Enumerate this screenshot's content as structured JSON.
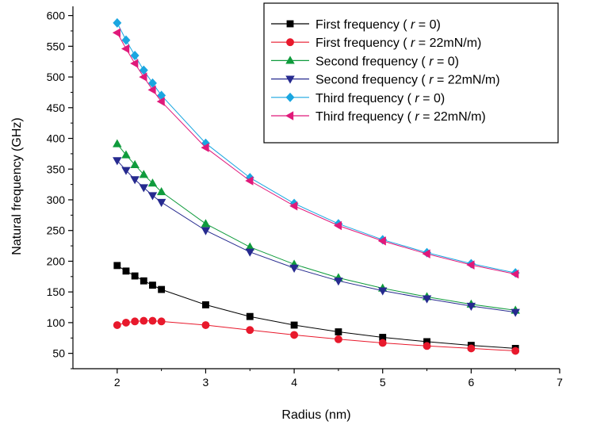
{
  "chart_data": {
    "type": "line",
    "xlabel": "Radius (nm)",
    "ylabel": "Natural frequency (GHz)",
    "xlim": [
      1.5,
      7
    ],
    "ylim": [
      25,
      615
    ],
    "xticks": [
      2,
      3,
      4,
      5,
      6,
      7
    ],
    "yticks": [
      50,
      100,
      150,
      200,
      250,
      300,
      350,
      400,
      450,
      500,
      550,
      600
    ],
    "grid": false,
    "legend_position": "top-right",
    "x": [
      2,
      2.1,
      2.2,
      2.3,
      2.4,
      2.5,
      3,
      3.5,
      4,
      4.5,
      5,
      5.5,
      6,
      6.5
    ],
    "series": [
      {
        "legend_prefix": "First frequency ( ",
        "legend_var": "r",
        "legend_suffix": " = 0)",
        "color": "#000000",
        "marker": "square",
        "values": [
          193,
          184,
          176,
          168,
          161,
          154,
          129,
          110,
          96,
          85,
          76,
          69,
          63,
          58
        ]
      },
      {
        "legend_prefix": "First frequency ( ",
        "legend_var": "r",
        "legend_suffix": " = 22mN/m)",
        "color": "#e8192c",
        "marker": "circle",
        "values": [
          96,
          100,
          102,
          103,
          103,
          102,
          96,
          88,
          80,
          73,
          67,
          62,
          58,
          54
        ]
      },
      {
        "legend_prefix": "Second frequency ( ",
        "legend_var": "r",
        "legend_suffix": " = 0)",
        "color": "#0f9b3c",
        "marker": "triangle-up",
        "values": [
          391,
          373,
          357,
          341,
          327,
          313,
          261,
          223,
          195,
          173,
          156,
          142,
          130,
          120
        ]
      },
      {
        "legend_prefix": "Second frequency ( ",
        "legend_var": "r",
        "legend_suffix": " = 22mN/m)",
        "color": "#262a8f",
        "marker": "triangle-down",
        "values": [
          364,
          348,
          333,
          320,
          307,
          296,
          250,
          215,
          189,
          168,
          152,
          139,
          127,
          117
        ]
      },
      {
        "legend_prefix": "Third frequency ( ",
        "legend_var": "r",
        "legend_suffix": " = 0)",
        "color": "#1aa6e0",
        "marker": "diamond",
        "values": [
          588,
          560,
          535,
          511,
          490,
          470,
          392,
          336,
          294,
          261,
          235,
          214,
          196,
          181
        ]
      },
      {
        "legend_prefix": "Third frequency ( ",
        "legend_var": "r",
        "legend_suffix": " = 22mN/m)",
        "color": "#e0197a",
        "marker": "triangle-left",
        "values": [
          572,
          546,
          522,
          500,
          479,
          460,
          385,
          331,
          290,
          258,
          233,
          212,
          194,
          179
        ]
      }
    ]
  }
}
